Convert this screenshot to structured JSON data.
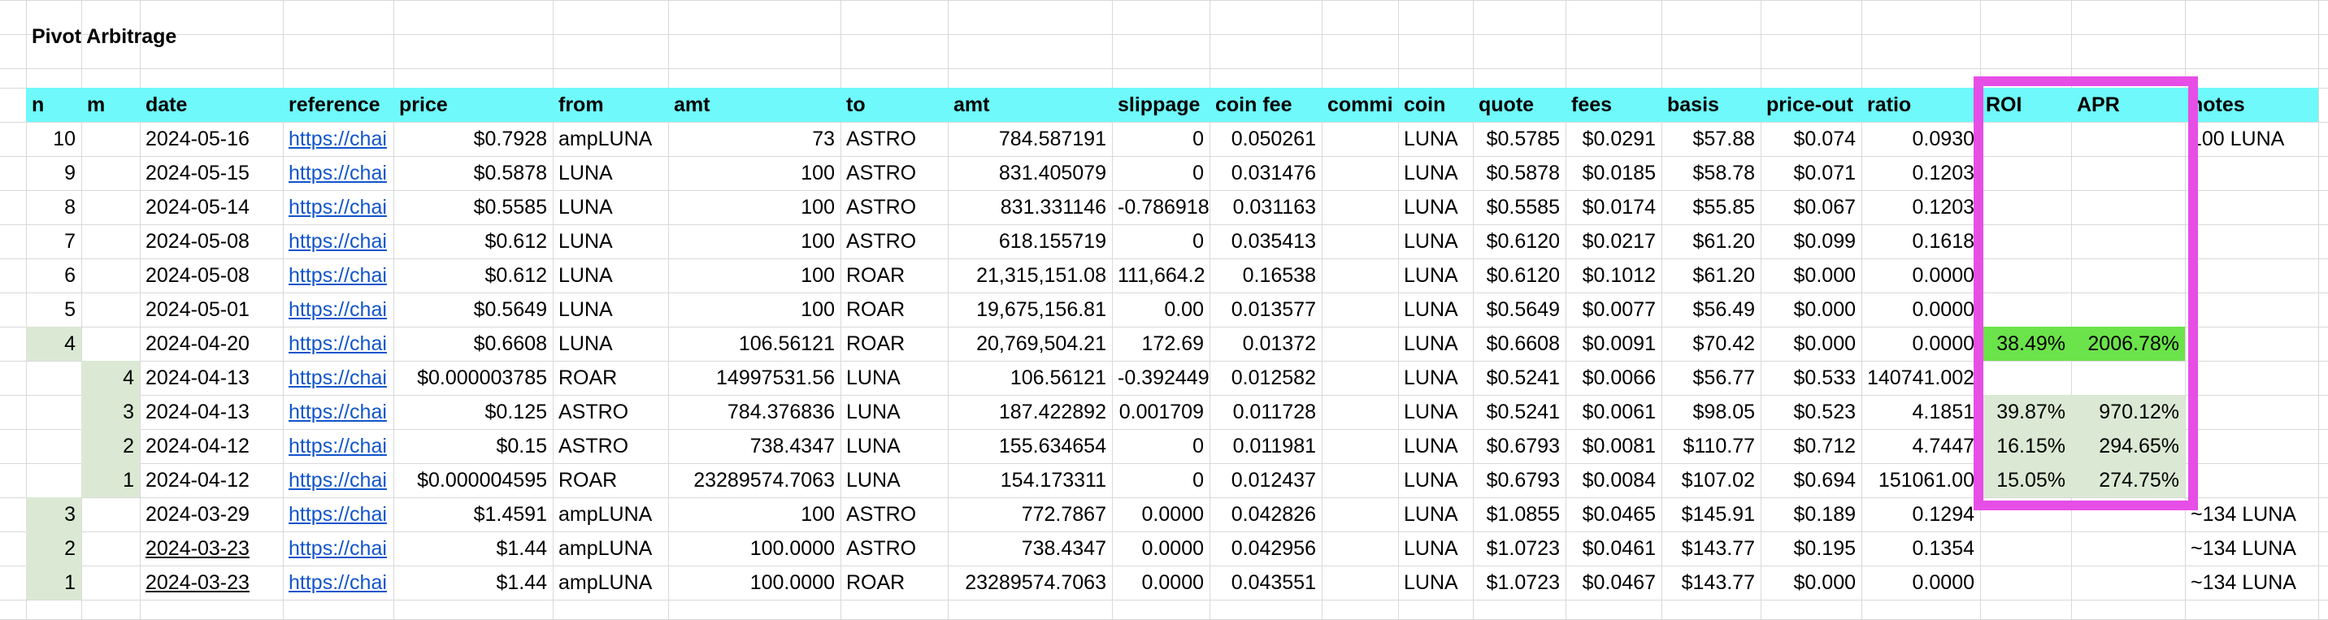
{
  "sheet_title": "Pivot Arbitrage",
  "colors": {
    "header_bg": "#6ff9fa",
    "green_bright": "#6be34a",
    "green_pale": "#dbe9d4",
    "link": "#1155cc",
    "highlight_box": "#e64ee6",
    "grid": "#d9d9d9"
  },
  "headers": [
    "n",
    "m",
    "date",
    "reference",
    "price",
    "from",
    "amt",
    "to",
    "amt",
    "slippage",
    "coin fee",
    "commi",
    "coin",
    "quote",
    "fees",
    "basis",
    "price-out",
    "ratio",
    "ROI",
    "APR",
    "notes"
  ],
  "rows": [
    [
      "10",
      "",
      "2024-05-16",
      "https://chai",
      "$0.7928",
      "ampLUNA",
      "73",
      "ASTRO",
      "784.587191",
      "0",
      "0.050261",
      "",
      "LUNA",
      "$0.5785",
      "$0.0291",
      "$57.88",
      "$0.074",
      "0.0930",
      "",
      "",
      "100 LUNA"
    ],
    [
      "9",
      "",
      "2024-05-15",
      "https://chai",
      "$0.5878",
      "LUNA",
      "100",
      "ASTRO",
      "831.405079",
      "0",
      "0.031476",
      "",
      "LUNA",
      "$0.5878",
      "$0.0185",
      "$58.78",
      "$0.071",
      "0.1203",
      "",
      "",
      ""
    ],
    [
      "8",
      "",
      "2024-05-14",
      "https://chai",
      "$0.5585",
      "LUNA",
      "100",
      "ASTRO",
      "831.331146",
      "-0.786918",
      "0.031163",
      "",
      "LUNA",
      "$0.5585",
      "$0.0174",
      "$55.85",
      "$0.067",
      "0.1203",
      "",
      "",
      ""
    ],
    [
      "7",
      "",
      "2024-05-08",
      "https://chai",
      "$0.612",
      "LUNA",
      "100",
      "ASTRO",
      "618.155719",
      "0",
      "0.035413",
      "",
      "LUNA",
      "$0.6120",
      "$0.0217",
      "$61.20",
      "$0.099",
      "0.1618",
      "",
      "",
      ""
    ],
    [
      "6",
      "",
      "2024-05-08",
      "https://chai",
      "$0.612",
      "LUNA",
      "100",
      "ROAR",
      "21,315,151.08",
      "111,664.2",
      "0.16538",
      "",
      "LUNA",
      "$0.6120",
      "$0.1012",
      "$61.20",
      "$0.000",
      "0.0000",
      "",
      "",
      ""
    ],
    [
      "5",
      "",
      "2024-05-01",
      "https://chai",
      "$0.5649",
      "LUNA",
      "100",
      "ROAR",
      "19,675,156.81",
      "0.00",
      "0.013577",
      "",
      "LUNA",
      "$0.5649",
      "$0.0077",
      "$56.49",
      "$0.000",
      "0.0000",
      "",
      "",
      ""
    ],
    [
      "4",
      "",
      "2024-04-20",
      "https://chai",
      "$0.6608",
      "LUNA",
      "106.56121",
      "ROAR",
      "20,769,504.21",
      "172.69",
      "0.01372",
      "",
      "LUNA",
      "$0.6608",
      "$0.0091",
      "$70.42",
      "$0.000",
      "0.0000",
      "38.49%",
      "2006.78%",
      ""
    ],
    [
      "",
      "4",
      "2024-04-13",
      "https://chai",
      "$0.000003785",
      "ROAR",
      "14997531.56",
      "LUNA",
      "106.56121",
      "-0.392449",
      "0.012582",
      "",
      "LUNA",
      "$0.5241",
      "$0.0066",
      "$56.77",
      "$0.533",
      "140741.002",
      "",
      "",
      ""
    ],
    [
      "",
      "3",
      "2024-04-13",
      "https://chai",
      "$0.125",
      "ASTRO",
      "784.376836",
      "LUNA",
      "187.422892",
      "0.001709",
      "0.011728",
      "",
      "LUNA",
      "$0.5241",
      "$0.0061",
      "$98.05",
      "$0.523",
      "4.1851",
      "39.87%",
      "970.12%",
      ""
    ],
    [
      "",
      "2",
      "2024-04-12",
      "https://chai",
      "$0.15",
      "ASTRO",
      "738.4347",
      "LUNA",
      "155.634654",
      "0",
      "0.011981",
      "",
      "LUNA",
      "$0.6793",
      "$0.0081",
      "$110.77",
      "$0.712",
      "4.7447",
      "16.15%",
      "294.65%",
      ""
    ],
    [
      "",
      "1",
      "2024-04-12",
      "https://chai",
      "$0.000004595",
      "ROAR",
      "23289574.7063",
      "LUNA",
      "154.173311",
      "0",
      "0.012437",
      "",
      "LUNA",
      "$0.6793",
      "$0.0084",
      "$107.02",
      "$0.694",
      "151061.00",
      "15.05%",
      "274.75%",
      ""
    ],
    [
      "3",
      "",
      "2024-03-29",
      "https://chai",
      "$1.4591",
      "ampLUNA",
      "100",
      "ASTRO",
      "772.7867",
      "0.0000",
      "0.042826",
      "",
      "LUNA",
      "$1.0855",
      "$0.0465",
      "$145.91",
      "$0.189",
      "0.1294",
      "",
      "",
      "~134 LUNA"
    ],
    [
      "2",
      "",
      "2024-03-23",
      "https://chai",
      "$1.44",
      "ampLUNA",
      "100.0000",
      "ASTRO",
      "738.4347",
      "0.0000",
      "0.042956",
      "",
      "LUNA",
      "$1.0723",
      "$0.0461",
      "$143.77",
      "$0.195",
      "0.1354",
      "",
      "",
      "~134 LUNA"
    ],
    [
      "1",
      "",
      "2024-03-23",
      "https://chai",
      "$1.44",
      "ampLUNA",
      "100.0000",
      "ROAR",
      "23289574.7063",
      "0.0000",
      "0.043551",
      "",
      "LUNA",
      "$1.0723",
      "$0.0467",
      "$143.77",
      "$0.000",
      "0.0000",
      "",
      "",
      "~134 LUNA"
    ]
  ]
}
